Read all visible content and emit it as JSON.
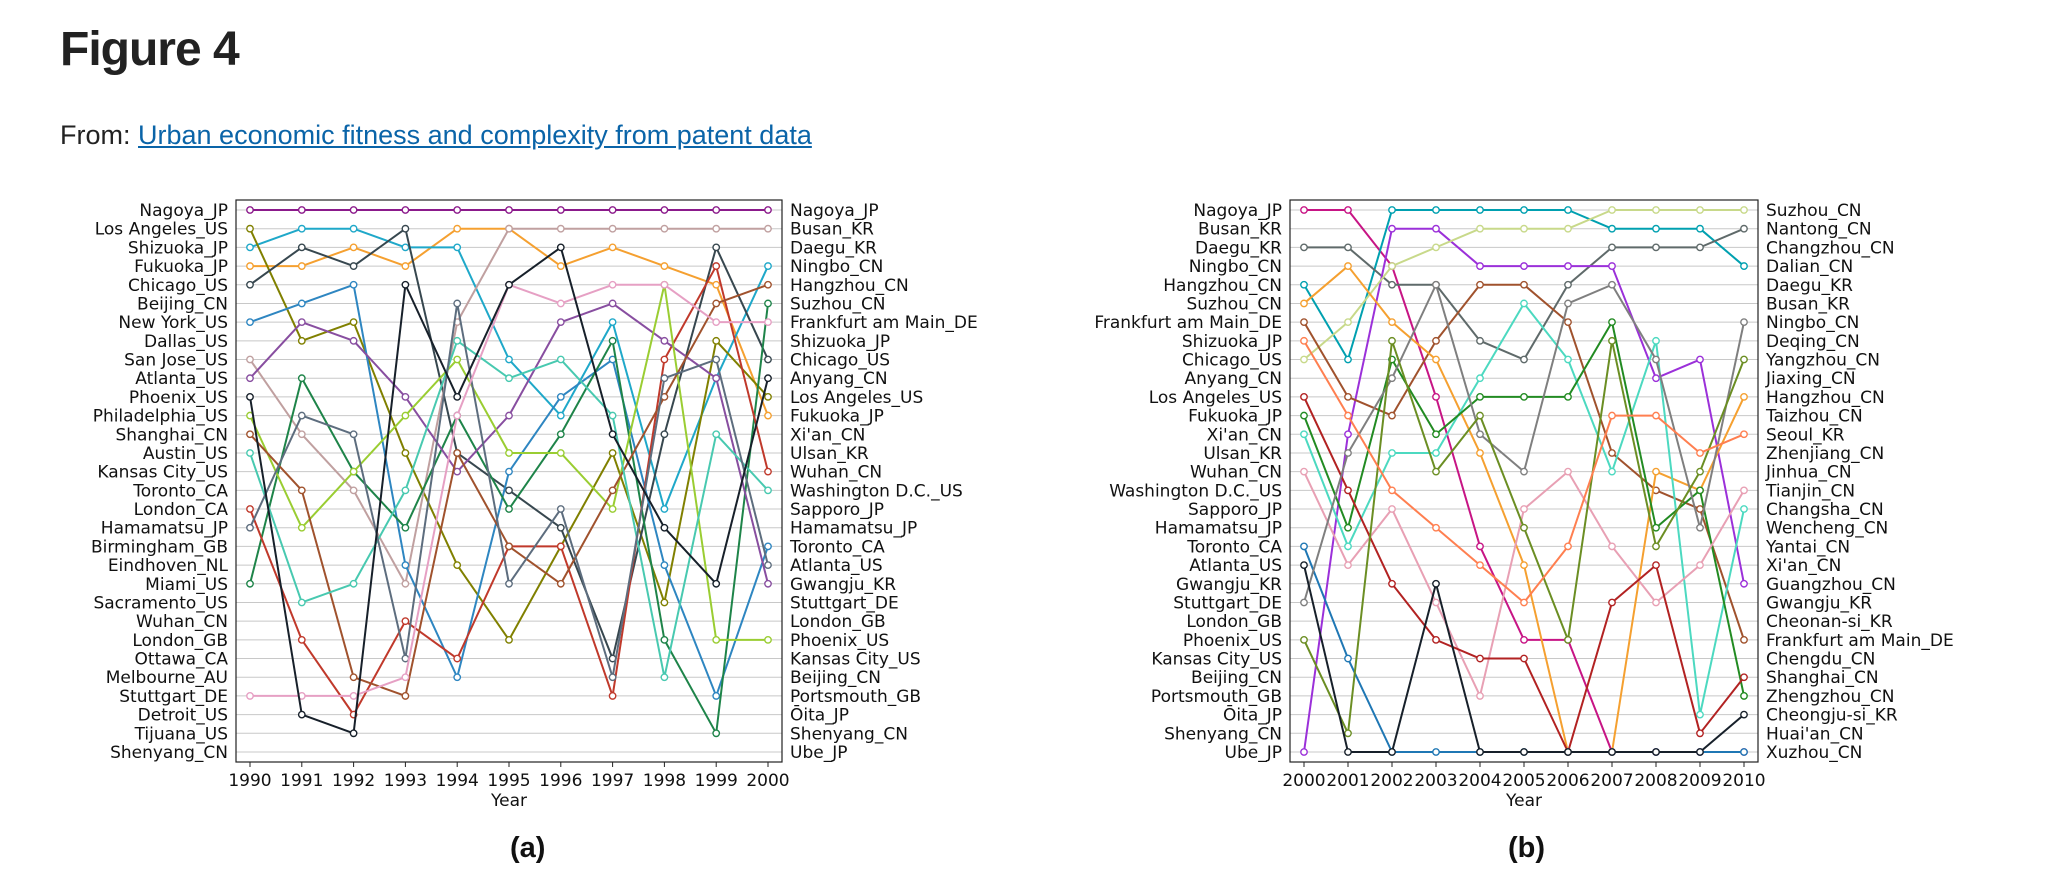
{
  "header": {
    "title": "Figure 4",
    "from_label": "From:",
    "link_text": "Urban economic fitness and complexity from patent data"
  },
  "panels": {
    "a_label": "(a)",
    "b_label": "(b)"
  },
  "chart_data": [
    {
      "type": "line",
      "title": "",
      "xlabel": "Year",
      "ylabel": "",
      "x": [
        1990,
        1991,
        1992,
        1993,
        1994,
        1995,
        1996,
        1997,
        1998,
        1999,
        2000
      ],
      "left_tick_labels": [
        "Nagoya_JP",
        "Los Angeles_US",
        "Shizuoka_JP",
        "Fukuoka_JP",
        "Chicago_US",
        "Beijing_CN",
        "New York_US",
        "Dallas_US",
        "San Jose_US",
        "Atlanta_US",
        "Phoenix_US",
        "Philadelphia_US",
        "Shanghai_CN",
        "Austin_US",
        "Kansas City_US",
        "Toronto_CA",
        "London_CA",
        "Hamamatsu_JP",
        "Birmingham_GB",
        "Eindhoven_NL",
        "Miami_US",
        "Sacramento_US",
        "Wuhan_CN",
        "London_GB",
        "Ottawa_CA",
        "Melbourne_AU",
        "Stuttgart_DE",
        "Detroit_US",
        "Tijuana_US",
        "Shenyang_CN"
      ],
      "right_tick_labels": [
        "Nagoya_JP",
        "Busan_KR",
        "Daegu_KR",
        "Ningbo_CN",
        "Hangzhou_CN",
        "Suzhou_CN",
        "Frankfurt am Main_DE",
        "Shizuoka_JP",
        "Chicago_US",
        "Anyang_CN",
        "Los Angeles_US",
        "Fukuoka_JP",
        "Xi'an_CN",
        "Ulsan_KR",
        "Wuhan_CN",
        "Washington D.C._US",
        "Sapporo_JP",
        "Hamamatsu_JP",
        "Toronto_CA",
        "Atlanta_US",
        "Gwangju_KR",
        "Stuttgart_DE",
        "London_GB",
        "Phoenix_US",
        "Kansas City_US",
        "Beijing_CN",
        "Portsmouth_GB",
        "Ōita_JP",
        "Shenyang_CN",
        "Ube_JP"
      ],
      "grid": true,
      "series": [
        {
          "color": "#8b1a8b",
          "values": [
            1,
            1,
            1,
            1,
            1,
            1,
            1,
            1,
            1,
            1,
            1
          ]
        },
        {
          "color": "#f5a030",
          "values": [
            4,
            4,
            3,
            4,
            2,
            2,
            4,
            3,
            4,
            5,
            12
          ]
        },
        {
          "color": "#1fa8c9",
          "values": [
            3,
            2,
            2,
            3,
            3,
            9,
            12,
            7,
            17,
            10,
            4
          ]
        },
        {
          "color": "#808000",
          "values": [
            2,
            8,
            7,
            14,
            20,
            24,
            19,
            14,
            22,
            8,
            11
          ]
        },
        {
          "color": "#37474f",
          "values": [
            5,
            3,
            4,
            2,
            14,
            16,
            18,
            25,
            13,
            3,
            9
          ]
        },
        {
          "color": "#c0a0a0",
          "values": [
            9,
            13,
            16,
            21,
            7,
            2,
            2,
            2,
            2,
            2,
            2
          ]
        },
        {
          "color": "#2e86c1",
          "values": [
            7,
            6,
            5,
            20,
            26,
            15,
            11,
            9,
            20,
            27,
            19
          ]
        },
        {
          "color": "#1e8449",
          "values": [
            21,
            10,
            15,
            18,
            12,
            17,
            13,
            8,
            24,
            29,
            6
          ]
        },
        {
          "color": "#c0392b",
          "values": [
            17,
            24,
            28,
            23,
            25,
            19,
            19,
            27,
            9,
            4,
            15
          ]
        },
        {
          "color": "#884ea0",
          "values": [
            10,
            7,
            8,
            11,
            15,
            12,
            7,
            6,
            8,
            10,
            21
          ]
        },
        {
          "color": "#9acd32",
          "values": [
            12,
            18,
            15,
            12,
            9,
            14,
            14,
            17,
            5,
            24,
            24
          ]
        },
        {
          "color": "#a0522d",
          "values": [
            13,
            16,
            26,
            27,
            14,
            19,
            21,
            16,
            11,
            6,
            5
          ]
        },
        {
          "color": "#48c9b0",
          "values": [
            14,
            22,
            21,
            16,
            8,
            10,
            9,
            12,
            26,
            13,
            16
          ]
        },
        {
          "color": "#5d6d7e",
          "values": [
            18,
            12,
            13,
            25,
            6,
            21,
            17,
            26,
            10,
            9,
            20
          ]
        },
        {
          "color": "#e6a0c4",
          "values": [
            27,
            27,
            27,
            26,
            12,
            5,
            6,
            5,
            5,
            7,
            7
          ]
        },
        {
          "color": "#17202a",
          "values": [
            11,
            28,
            29,
            5,
            11,
            5,
            3,
            13,
            18,
            21,
            10
          ]
        }
      ]
    },
    {
      "type": "line",
      "title": "",
      "xlabel": "Year",
      "ylabel": "",
      "x": [
        2000,
        2001,
        2002,
        2003,
        2004,
        2005,
        2006,
        2007,
        2008,
        2009,
        2010
      ],
      "left_tick_labels": [
        "Nagoya_JP",
        "Busan_KR",
        "Daegu_KR",
        "Ningbo_CN",
        "Hangzhou_CN",
        "Suzhou_CN",
        "Frankfurt am Main_DE",
        "Shizuoka_JP",
        "Chicago_US",
        "Anyang_CN",
        "Los Angeles_US",
        "Fukuoka_JP",
        "Xi'an_CN",
        "Ulsan_KR",
        "Wuhan_CN",
        "Washington D.C._US",
        "Sapporo_JP",
        "Hamamatsu_JP",
        "Toronto_CA",
        "Atlanta_US",
        "Gwangju_KR",
        "Stuttgart_DE",
        "London_GB",
        "Phoenix_US",
        "Kansas City_US",
        "Beijing_CN",
        "Portsmouth_GB",
        "Ōita_JP",
        "Shenyang_CN",
        "Ube_JP"
      ],
      "right_tick_labels": [
        "Suzhou_CN",
        "Nantong_CN",
        "Changzhou_CN",
        "Dalian_CN",
        "Daegu_KR",
        "Busan_KR",
        "Ningbo_CN",
        "Deqing_CN",
        "Yangzhou_CN",
        "Jiaxing_CN",
        "Hangzhou_CN",
        "Taizhou_CN",
        "Seoul_KR",
        "Zhenjiang_CN",
        "Jinhua_CN",
        "Tianjin_CN",
        "Changsha_CN",
        "Wencheng_CN",
        "Yantai_CN",
        "Xi'an_CN",
        "Guangzhou_CN",
        "Gwangju_KR",
        "Cheonan-si_KR",
        "Frankfurt am Main_DE",
        "Chengdu_CN",
        "Shanghai_CN",
        "Zhengzhou_CN",
        "Cheongju-si_KR",
        "Huai'an_CN",
        "Xuzhou_CN"
      ],
      "grid": true,
      "series": [
        {
          "color": "#c71585",
          "values": [
            1,
            1,
            4,
            11,
            19,
            24,
            24,
            30,
            30,
            30,
            30
          ]
        },
        {
          "color": "#00a0b0",
          "values": [
            5,
            9,
            1,
            1,
            1,
            1,
            1,
            2,
            2,
            2,
            4
          ]
        },
        {
          "color": "#5f6a6a",
          "values": [
            3,
            3,
            5,
            5,
            8,
            9,
            5,
            3,
            3,
            3,
            2
          ]
        },
        {
          "color": "#9b30d9",
          "values": [
            30,
            13,
            2,
            2,
            4,
            4,
            4,
            4,
            10,
            9,
            21
          ]
        },
        {
          "color": "#c8d98a",
          "values": [
            9,
            7,
            4,
            3,
            2,
            2,
            2,
            1,
            1,
            1,
            1
          ]
        },
        {
          "color": "#a0522d",
          "values": [
            7,
            11,
            12,
            8,
            5,
            5,
            7,
            14,
            16,
            17,
            24
          ]
        },
        {
          "color": "#f5a030",
          "values": [
            6,
            4,
            7,
            9,
            14,
            20,
            30,
            30,
            15,
            16,
            11
          ]
        },
        {
          "color": "#4cd9c0",
          "values": [
            13,
            19,
            14,
            14,
            10,
            6,
            9,
            15,
            8,
            28,
            17
          ]
        },
        {
          "color": "#228b22",
          "values": [
            12,
            18,
            9,
            13,
            11,
            11,
            11,
            7,
            18,
            16,
            27
          ]
        },
        {
          "color": "#e8a0b4",
          "values": [
            15,
            20,
            17,
            22,
            27,
            17,
            15,
            19,
            22,
            20,
            16
          ]
        },
        {
          "color": "#b22222",
          "values": [
            11,
            16,
            21,
            24,
            25,
            25,
            30,
            22,
            20,
            29,
            26
          ]
        },
        {
          "color": "#1f77b4",
          "values": [
            19,
            25,
            30,
            30,
            30,
            30,
            30,
            30,
            30,
            30,
            30
          ]
        },
        {
          "color": "#7f7f7f",
          "values": [
            22,
            14,
            10,
            5,
            13,
            15,
            6,
            5,
            9,
            18,
            7
          ]
        },
        {
          "color": "#6b8e23",
          "values": [
            24,
            29,
            8,
            15,
            12,
            18,
            24,
            8,
            19,
            15,
            9
          ]
        },
        {
          "color": "#17202a",
          "values": [
            20,
            30,
            30,
            21,
            30,
            30,
            30,
            30,
            30,
            30,
            28
          ]
        },
        {
          "color": "#ff7f50",
          "values": [
            8,
            12,
            16,
            18,
            20,
            22,
            19,
            12,
            12,
            14,
            13
          ]
        }
      ]
    }
  ]
}
